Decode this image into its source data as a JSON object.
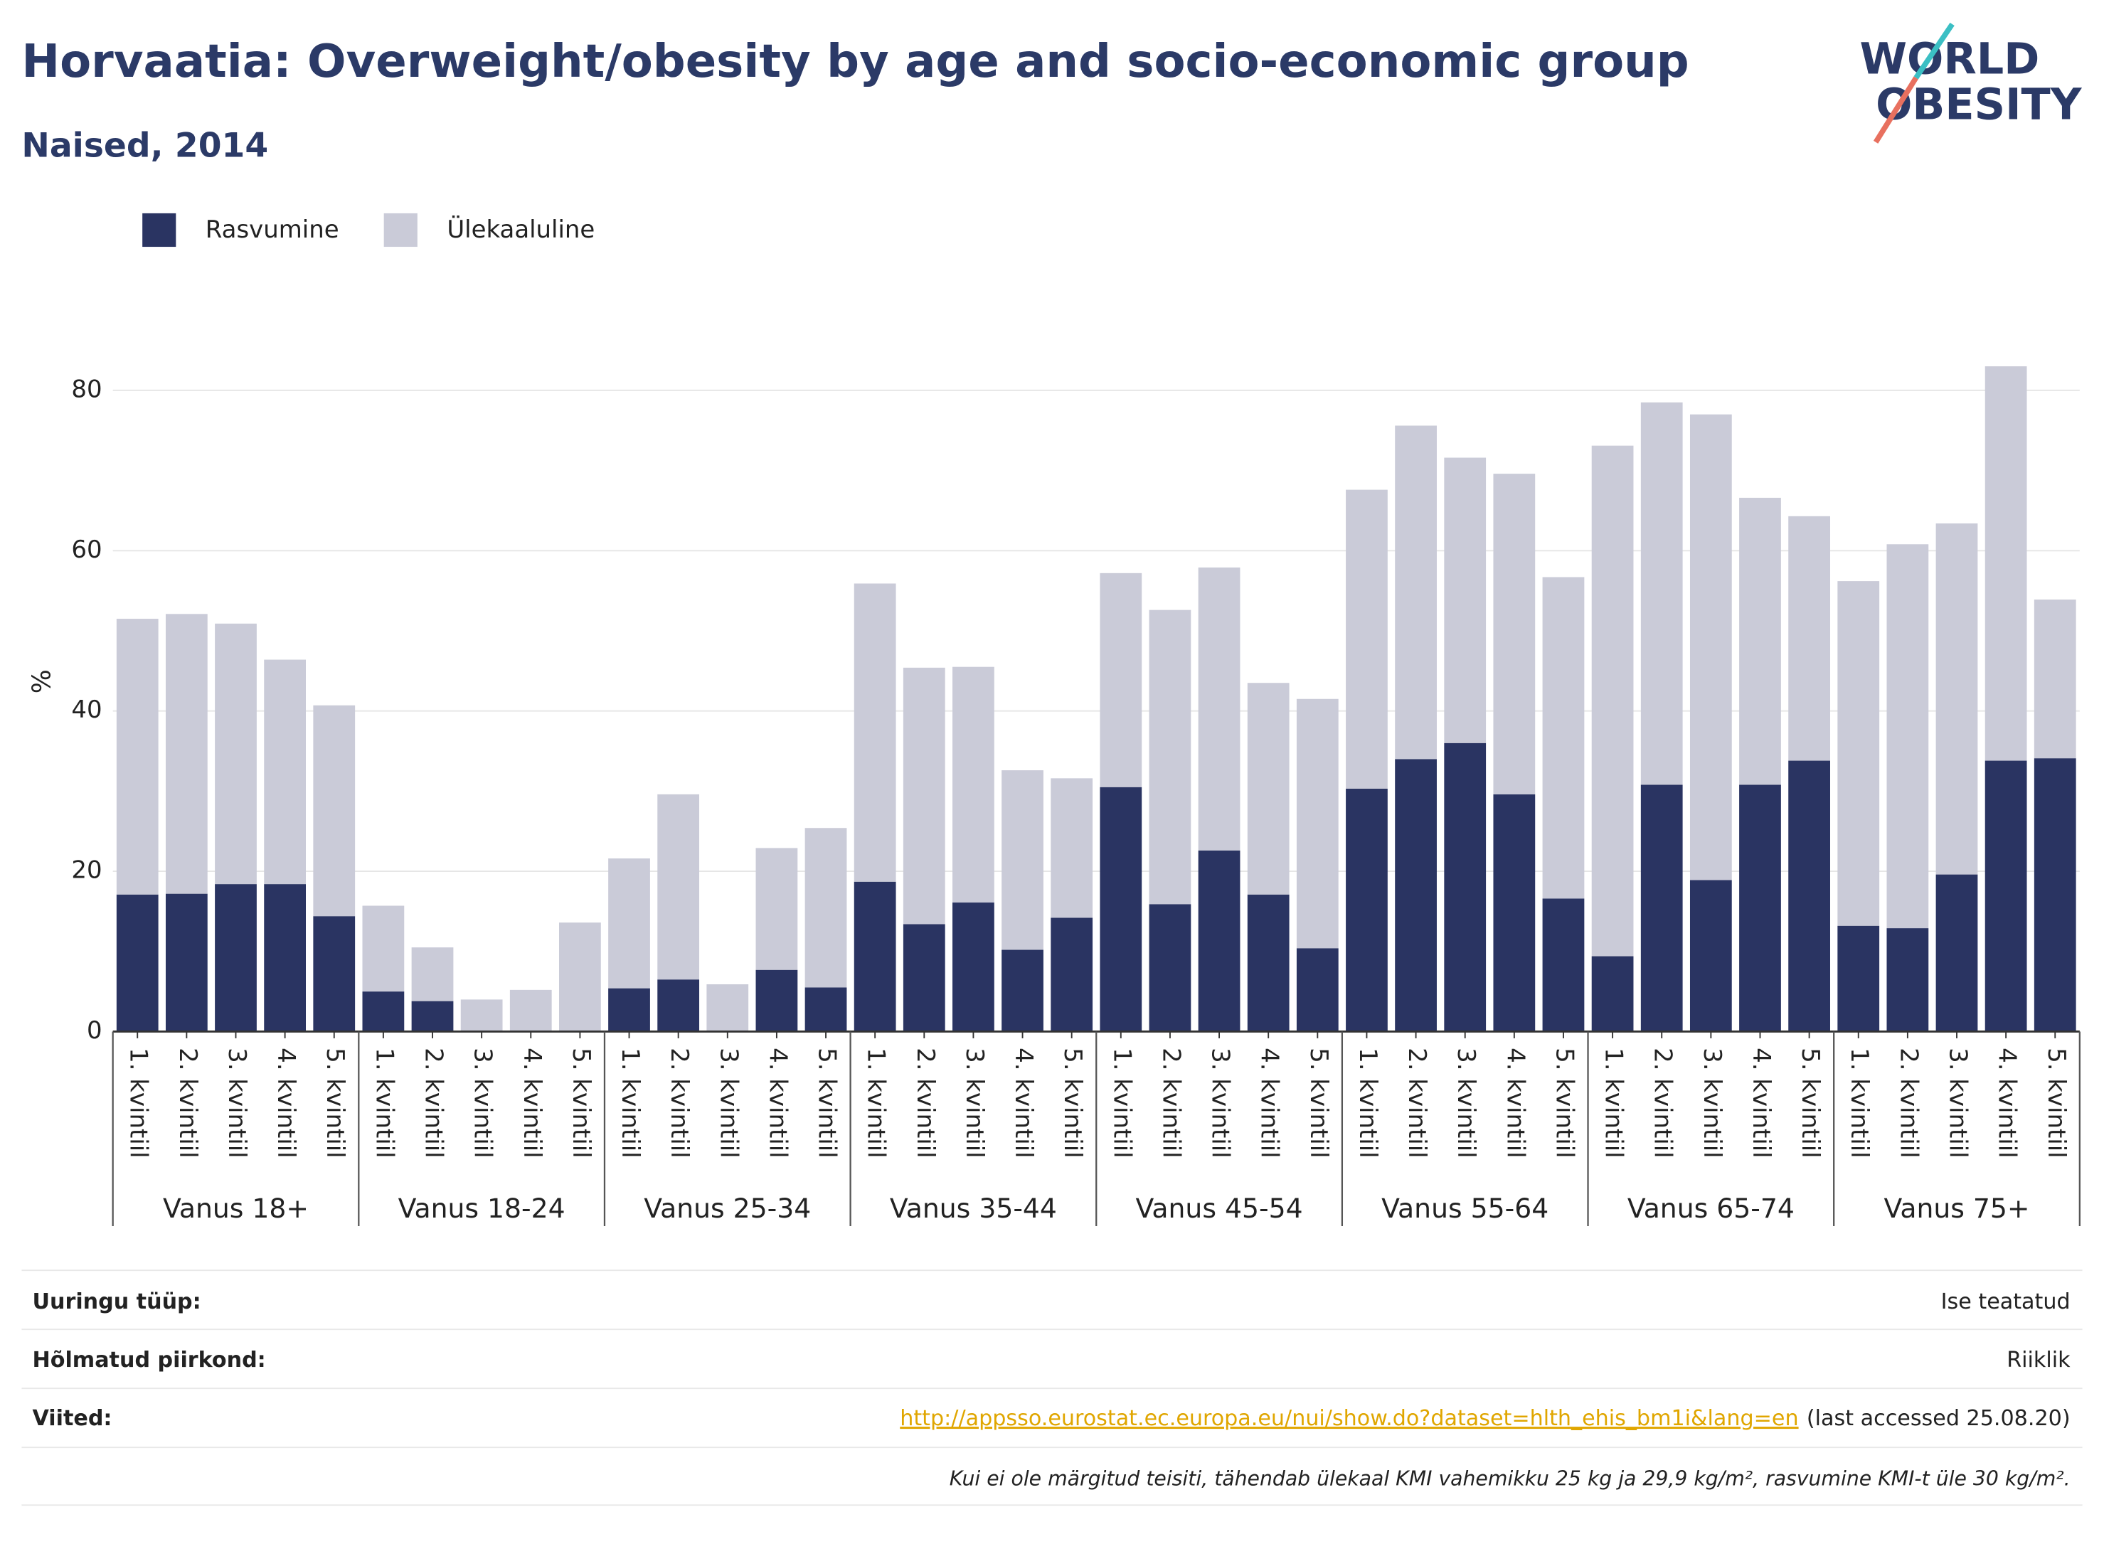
{
  "chart_data": {
    "type": "stacked_bar",
    "title": "Horvaatia: Overweight/obesity by age and socio-economic group",
    "subtitle": "Naised, 2014",
    "logo": [
      "WORLD",
      "OBESITY"
    ],
    "ylabel": "%",
    "categories": [
      "1. kvintiil",
      "2. kvintiil",
      "3. kvintiil",
      "4. kvintiil",
      "5. kvintiil",
      "1. kvintiil",
      "2. kvintiil",
      "3. kvintiil",
      "4. kvintiil",
      "5. kvintiil",
      "1. kvintiil",
      "2. kvintiil",
      "3. kvintiil",
      "4. kvintiil",
      "5. kvintiil",
      "1. kvintiil",
      "2. kvintiil",
      "3. kvintiil",
      "4. kvintiil",
      "5. kvintiil",
      "1. kvintiil",
      "2. kvintiil",
      "3. kvintiil",
      "4. kvintiil",
      "5. kvintiil",
      "1. kvintiil",
      "2. kvintiil",
      "3. kvintiil",
      "4. kvintiil",
      "5. kvintiil",
      "1. kvintiil",
      "2. kvintiil",
      "3. kvintiil",
      "4. kvintiil",
      "5. kvintiil",
      "1. kvintiil",
      "2. kvintiil",
      "3. kvintiil",
      "4. kvintiil",
      "5. kvintiil"
    ],
    "groups": [
      "Vanus 18+",
      "Vanus 18-24",
      "Vanus 25-34",
      "Vanus 35-44",
      "Vanus 45-54",
      "Vanus 55-64",
      "Vanus 65-74",
      "Vanus 75+"
    ],
    "series": [
      {
        "name": "Rasvumine",
        "color": "#2a3462",
        "values": [
          17.1,
          17.2,
          18.4,
          18.4,
          14.4,
          5.0,
          3.8,
          0,
          0,
          0,
          5.4,
          6.5,
          0,
          7.7,
          5.5,
          18.7,
          13.4,
          16.1,
          10.2,
          14.2,
          30.5,
          15.9,
          22.6,
          17.1,
          10.4,
          30.3,
          34.0,
          36.0,
          29.6,
          16.6,
          9.4,
          30.8,
          18.9,
          30.8,
          33.8,
          13.2,
          12.9,
          19.6,
          33.8,
          34.1
        ]
      },
      {
        "name": "Ülekaaluline",
        "color": "#cacbd8",
        "values": [
          34.4,
          34.9,
          32.5,
          28.0,
          26.3,
          10.7,
          6.7,
          4.0,
          5.2,
          13.6,
          16.2,
          23.1,
          5.9,
          15.2,
          19.9,
          37.2,
          32.0,
          29.4,
          22.4,
          17.4,
          26.7,
          36.7,
          35.3,
          26.4,
          31.1,
          37.3,
          41.6,
          35.6,
          40.0,
          40.1,
          63.7,
          47.7,
          58.1,
          35.8,
          30.5,
          43.0,
          47.9,
          43.8,
          49.2,
          19.8
        ]
      }
    ],
    "ylim": [
      0,
      90
    ],
    "yticks": [
      0,
      20,
      40,
      60,
      80
    ],
    "grid": true
  },
  "footer": {
    "rows": [
      {
        "label": "Uuringu tüüp:",
        "value": "Ise teatatud"
      },
      {
        "label": "Hõlmatud piirkond:",
        "value": "Riiklik"
      }
    ],
    "refs_label": "Viited:",
    "link": "http://appsso.eurostat.ec.europa.eu/nui/show.do?dataset=hlth_ehis_bm1i&lang=en",
    "accessed": "(last accessed 25.08.20)",
    "note": "Kui ei ole märgitud teisiti, tähendab ülekaal KMI vahemikku 25 kg ja 29,9 kg/m², rasvumine KMI-t üle 30 kg/m²."
  }
}
